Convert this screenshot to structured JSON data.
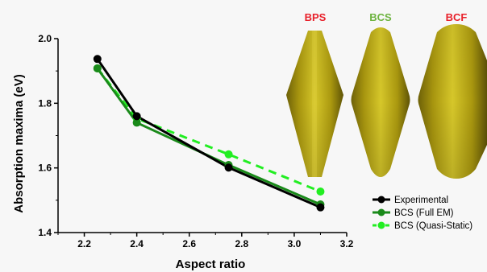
{
  "colors": {
    "background": "#f7f7f7",
    "experimental": "#000000",
    "bcs_full_em": "#1a8a1a",
    "bcs_quasi_static": "#22ee22",
    "gold": "#b8a418",
    "bps_label": "#e8202a",
    "bcs_label": "#6db33f",
    "bcf_label": "#e8202a"
  },
  "shapes": [
    {
      "label": "BPS",
      "icon": "bipyramid-shape",
      "color": "#e8202a"
    },
    {
      "label": "BCS",
      "icon": "bicone-shape",
      "color": "#6db33f"
    },
    {
      "label": "BCF",
      "icon": "bicone-flat-shape",
      "color": "#e8202a"
    }
  ],
  "chart_data": {
    "type": "line",
    "title": "",
    "xlabel": "Aspect ratio",
    "ylabel": "Absorption maxima (eV)",
    "xlim": [
      2.1,
      3.2
    ],
    "ylim": [
      1.4,
      2.0
    ],
    "xticks": [
      "2.2",
      "2.4",
      "2.6",
      "2.8",
      "3.0",
      "3.2"
    ],
    "yticks": [
      "1.4",
      "1.6",
      "1.8",
      "2.0"
    ],
    "grid": false,
    "legend_position": "bottom-right",
    "series": [
      {
        "name": "Experimental",
        "x": [
          2.25,
          2.4,
          2.75,
          3.1
        ],
        "y": [
          1.937,
          1.76,
          1.601,
          1.478
        ],
        "color": "#000000",
        "dash": false
      },
      {
        "name": "BCS (Full EM)",
        "x": [
          2.25,
          2.4,
          2.75,
          3.1
        ],
        "y": [
          1.908,
          1.74,
          1.609,
          1.487
        ],
        "color": "#1a8a1a",
        "dash": false
      },
      {
        "name": "BCS (Quasi-Static)",
        "x": [
          2.25,
          2.4,
          2.75,
          3.1
        ],
        "y": [
          1.908,
          1.753,
          1.642,
          1.527
        ],
        "color": "#22ee22",
        "dash": true
      }
    ]
  }
}
